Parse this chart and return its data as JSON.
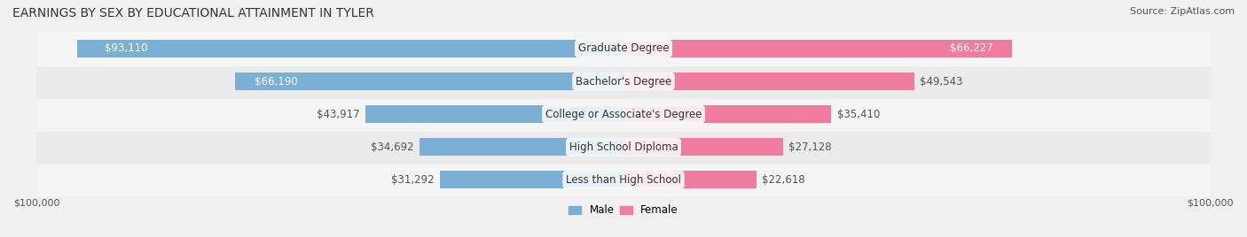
{
  "title": "EARNINGS BY SEX BY EDUCATIONAL ATTAINMENT IN TYLER",
  "source": "Source: ZipAtlas.com",
  "categories": [
    "Less than High School",
    "High School Diploma",
    "College or Associate's Degree",
    "Bachelor's Degree",
    "Graduate Degree"
  ],
  "male_values": [
    31292,
    34692,
    43917,
    66190,
    93110
  ],
  "female_values": [
    22618,
    27128,
    35410,
    49543,
    66227
  ],
  "male_color": "#7bafd4",
  "female_color": "#f07ca0",
  "bar_bg_color": "#e8e8e8",
  "row_bg_colors": [
    "#f5f5f5",
    "#ebebeb"
  ],
  "max_value": 100000,
  "xlabel_left": "$100,000",
  "xlabel_right": "$100,000",
  "legend_male": "Male",
  "legend_female": "Female",
  "title_fontsize": 10,
  "source_fontsize": 8,
  "label_fontsize": 8.5,
  "bar_height": 0.55,
  "fig_width": 14.06,
  "fig_height": 2.68
}
